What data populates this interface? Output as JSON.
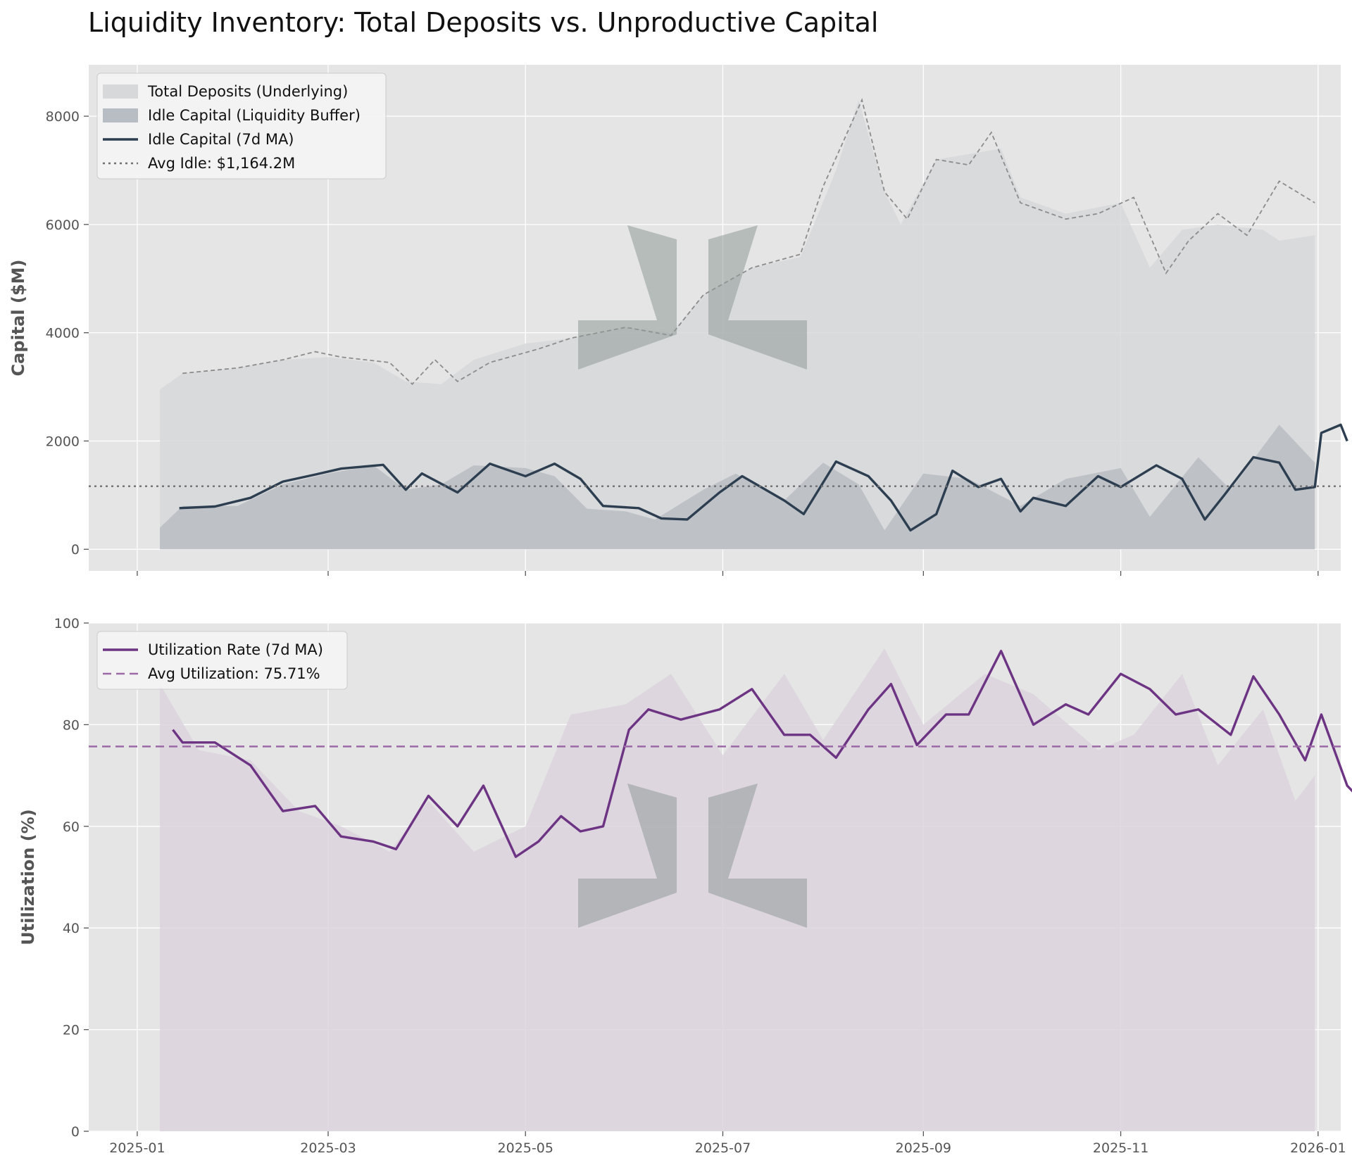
{
  "title": "Liquidity Inventory: Total Deposits vs. Unproductive Capital",
  "colors": {
    "panel_bg": "#e5e5e5",
    "grid": "#ffffff",
    "deposits_fill": "#d7d8da",
    "deposits_line": "#8c8c8c",
    "idle_fill": "#b8bdc3",
    "idle_line": "#2c3e50",
    "avg_idle_line": "#707070",
    "util_fill": "#dcd3de",
    "util_line": "#6c3483",
    "avg_util_line": "#9b6aa6",
    "watermark": "#8f9a98"
  },
  "chart_data": [
    {
      "type": "area",
      "ylabel": "Capital ($M)",
      "ylim": [
        -400,
        8950
      ],
      "yticks": [
        0,
        2000,
        4000,
        6000,
        8000
      ],
      "xlim": [
        "2024-12-17",
        "2026-01-08"
      ],
      "xticks": [
        "2025-01",
        "2025-03",
        "2025-05",
        "2025-07",
        "2025-09",
        "2025-11",
        "2026-01"
      ],
      "x_start": "2025-01-08",
      "x_end": "2025-12-31",
      "grid": true,
      "legend_position": "top-left",
      "series": [
        {
          "name": "Total Deposits (Underlying)",
          "kind": "area",
          "points": [
            [
              "2025-01-08",
              2950
            ],
            [
              "2025-01-15",
              3250
            ],
            [
              "2025-02-01",
              3350
            ],
            [
              "2025-02-15",
              3500
            ],
            [
              "2025-03-01",
              3550
            ],
            [
              "2025-03-15",
              3450
            ],
            [
              "2025-03-25",
              3100
            ],
            [
              "2025-04-05",
              3050
            ],
            [
              "2025-04-15",
              3500
            ],
            [
              "2025-05-01",
              3800
            ],
            [
              "2025-05-15",
              3900
            ],
            [
              "2025-06-01",
              4100
            ],
            [
              "2025-06-15",
              4000
            ],
            [
              "2025-06-25",
              4700
            ],
            [
              "2025-07-10",
              5200
            ],
            [
              "2025-07-25",
              5400
            ],
            [
              "2025-08-05",
              7000
            ],
            [
              "2025-08-12",
              8300
            ],
            [
              "2025-08-20",
              6600
            ],
            [
              "2025-08-25",
              6000
            ],
            [
              "2025-09-05",
              7200
            ],
            [
              "2025-09-15",
              7300
            ],
            [
              "2025-09-25",
              7400
            ],
            [
              "2025-10-01",
              6500
            ],
            [
              "2025-10-15",
              6200
            ],
            [
              "2025-11-01",
              6400
            ],
            [
              "2025-11-10",
              5200
            ],
            [
              "2025-11-20",
              5900
            ],
            [
              "2025-12-01",
              6000
            ],
            [
              "2025-12-15",
              5900
            ],
            [
              "2025-12-20",
              5700
            ],
            [
              "2025-12-31",
              5800
            ]
          ]
        },
        {
          "name": "",
          "kind": "dashed-trend",
          "points": [
            [
              "2025-01-15",
              3250
            ],
            [
              "2025-02-01",
              3350
            ],
            [
              "2025-02-15",
              3500
            ],
            [
              "2025-02-25",
              3650
            ],
            [
              "2025-03-05",
              3550
            ],
            [
              "2025-03-20",
              3450
            ],
            [
              "2025-03-27",
              3050
            ],
            [
              "2025-04-03",
              3500
            ],
            [
              "2025-04-10",
              3100
            ],
            [
              "2025-04-20",
              3450
            ],
            [
              "2025-05-05",
              3700
            ],
            [
              "2025-05-15",
              3900
            ],
            [
              "2025-06-01",
              4100
            ],
            [
              "2025-06-15",
              3950
            ],
            [
              "2025-06-25",
              4700
            ],
            [
              "2025-07-10",
              5200
            ],
            [
              "2025-07-25",
              5450
            ],
            [
              "2025-08-01",
              6700
            ],
            [
              "2025-08-10",
              7900
            ],
            [
              "2025-08-13",
              8300
            ],
            [
              "2025-08-20",
              6600
            ],
            [
              "2025-08-27",
              6100
            ],
            [
              "2025-09-05",
              7200
            ],
            [
              "2025-09-15",
              7100
            ],
            [
              "2025-09-22",
              7700
            ],
            [
              "2025-10-01",
              6400
            ],
            [
              "2025-10-15",
              6100
            ],
            [
              "2025-10-25",
              6200
            ],
            [
              "2025-11-05",
              6500
            ],
            [
              "2025-11-15",
              5100
            ],
            [
              "2025-11-22",
              5700
            ],
            [
              "2025-12-01",
              6200
            ],
            [
              "2025-12-10",
              5800
            ],
            [
              "2025-12-20",
              6800
            ],
            [
              "2025-12-31",
              6400
            ]
          ]
        },
        {
          "name": "Idle Capital (Liquidity Buffer)",
          "kind": "area",
          "points": [
            [
              "2025-01-08",
              400
            ],
            [
              "2025-01-15",
              800
            ],
            [
              "2025-02-01",
              800
            ],
            [
              "2025-02-15",
              1200
            ],
            [
              "2025-03-01",
              1400
            ],
            [
              "2025-03-15",
              1550
            ],
            [
              "2025-03-25",
              1100
            ],
            [
              "2025-04-05",
              1200
            ],
            [
              "2025-04-15",
              1550
            ],
            [
              "2025-05-01",
              1500
            ],
            [
              "2025-05-10",
              1350
            ],
            [
              "2025-05-20",
              750
            ],
            [
              "2025-06-01",
              700
            ],
            [
              "2025-06-10",
              550
            ],
            [
              "2025-06-25",
              1100
            ],
            [
              "2025-07-05",
              1400
            ],
            [
              "2025-07-20",
              900
            ],
            [
              "2025-08-01",
              1600
            ],
            [
              "2025-08-12",
              1200
            ],
            [
              "2025-08-20",
              350
            ],
            [
              "2025-09-01",
              1400
            ],
            [
              "2025-09-15",
              1300
            ],
            [
              "2025-10-01",
              800
            ],
            [
              "2025-10-15",
              1300
            ],
            [
              "2025-11-01",
              1500
            ],
            [
              "2025-11-10",
              600
            ],
            [
              "2025-11-25",
              1700
            ],
            [
              "2025-12-05",
              1100
            ],
            [
              "2025-12-20",
              2300
            ],
            [
              "2025-12-31",
              1600
            ]
          ]
        },
        {
          "name": "Idle Capital (7d MA)",
          "kind": "line",
          "points": [
            [
              "2025-01-14",
              760
            ],
            [
              "2025-01-25",
              790
            ],
            [
              "2025-02-05",
              950
            ],
            [
              "2025-02-15",
              1250
            ],
            [
              "2025-02-25",
              1380
            ],
            [
              "2025-03-05",
              1490
            ],
            [
              "2025-03-18",
              1560
            ],
            [
              "2025-03-25",
              1100
            ],
            [
              "2025-03-30",
              1400
            ],
            [
              "2025-04-10",
              1050
            ],
            [
              "2025-04-20",
              1580
            ],
            [
              "2025-05-01",
              1350
            ],
            [
              "2025-05-10",
              1580
            ],
            [
              "2025-05-18",
              1300
            ],
            [
              "2025-05-25",
              800
            ],
            [
              "2025-06-05",
              760
            ],
            [
              "2025-06-12",
              570
            ],
            [
              "2025-06-20",
              550
            ],
            [
              "2025-06-30",
              1050
            ],
            [
              "2025-07-07",
              1350
            ],
            [
              "2025-07-20",
              900
            ],
            [
              "2025-07-26",
              650
            ],
            [
              "2025-08-05",
              1620
            ],
            [
              "2025-08-15",
              1350
            ],
            [
              "2025-08-22",
              900
            ],
            [
              "2025-08-28",
              350
            ],
            [
              "2025-09-05",
              650
            ],
            [
              "2025-09-10",
              1450
            ],
            [
              "2025-09-18",
              1150
            ],
            [
              "2025-09-25",
              1300
            ],
            [
              "2025-10-01",
              700
            ],
            [
              "2025-10-05",
              950
            ],
            [
              "2025-10-15",
              800
            ],
            [
              "2025-10-25",
              1350
            ],
            [
              "2025-11-01",
              1150
            ],
            [
              "2025-11-12",
              1550
            ],
            [
              "2025-11-20",
              1300
            ],
            [
              "2025-11-27",
              550
            ],
            [
              "2025-12-03",
              1000
            ],
            [
              "2025-12-12",
              1700
            ],
            [
              "2025-12-20",
              1600
            ],
            [
              "2025-12-25",
              1100
            ],
            [
              "2025-12-31",
              1150
            ],
            [
              "2026-01-02",
              2150
            ],
            [
              "2026-01-08",
              2300
            ],
            [
              "2026-01-10",
              2000
            ]
          ]
        },
        {
          "name": "Avg Idle: $1,164.2M",
          "kind": "hline",
          "value": 1164.2
        }
      ]
    },
    {
      "type": "area",
      "ylabel": "Utilization (%)",
      "ylim": [
        0,
        100
      ],
      "yticks": [
        0,
        20,
        40,
        60,
        80,
        100
      ],
      "xlim": [
        "2024-12-17",
        "2026-01-08"
      ],
      "xticks": [
        "2025-01",
        "2025-03",
        "2025-05",
        "2025-07",
        "2025-09",
        "2025-11",
        "2026-01"
      ],
      "grid": true,
      "legend_position": "top-left",
      "series": [
        {
          "name": "",
          "kind": "area",
          "points": [
            [
              "2025-01-08",
              88
            ],
            [
              "2025-01-20",
              75
            ],
            [
              "2025-02-05",
              73
            ],
            [
              "2025-02-20",
              63
            ],
            [
              "2025-03-05",
              60
            ],
            [
              "2025-03-20",
              55
            ],
            [
              "2025-04-01",
              65
            ],
            [
              "2025-04-15",
              55
            ],
            [
              "2025-05-01",
              60
            ],
            [
              "2025-05-15",
              82
            ],
            [
              "2025-06-01",
              84
            ],
            [
              "2025-06-15",
              90
            ],
            [
              "2025-07-01",
              74
            ],
            [
              "2025-07-20",
              90
            ],
            [
              "2025-08-01",
              77
            ],
            [
              "2025-08-20",
              95
            ],
            [
              "2025-09-01",
              80
            ],
            [
              "2025-09-20",
              90
            ],
            [
              "2025-10-05",
              86
            ],
            [
              "2025-10-25",
              75
            ],
            [
              "2025-11-05",
              78
            ],
            [
              "2025-11-20",
              90
            ],
            [
              "2025-12-01",
              72
            ],
            [
              "2025-12-15",
              83
            ],
            [
              "2025-12-25",
              65
            ],
            [
              "2025-12-31",
              70
            ]
          ]
        },
        {
          "name": "Utilization Rate (7d MA)",
          "kind": "line",
          "points": [
            [
              "2025-01-12",
              79
            ],
            [
              "2025-01-15",
              76.5
            ],
            [
              "2025-01-25",
              76.5
            ],
            [
              "2025-02-05",
              72
            ],
            [
              "2025-02-15",
              63
            ],
            [
              "2025-02-25",
              64
            ],
            [
              "2025-03-05",
              58
            ],
            [
              "2025-03-15",
              57
            ],
            [
              "2025-03-22",
              55.5
            ],
            [
              "2025-04-01",
              66
            ],
            [
              "2025-04-10",
              60
            ],
            [
              "2025-04-18",
              68
            ],
            [
              "2025-04-28",
              54
            ],
            [
              "2025-05-05",
              57
            ],
            [
              "2025-05-12",
              62
            ],
            [
              "2025-05-18",
              59
            ],
            [
              "2025-05-25",
              60
            ],
            [
              "2025-06-02",
              79
            ],
            [
              "2025-06-08",
              83
            ],
            [
              "2025-06-18",
              81
            ],
            [
              "2025-06-30",
              83
            ],
            [
              "2025-07-10",
              87
            ],
            [
              "2025-07-20",
              78
            ],
            [
              "2025-07-28",
              78
            ],
            [
              "2025-08-05",
              73.5
            ],
            [
              "2025-08-15",
              83
            ],
            [
              "2025-08-22",
              88
            ],
            [
              "2025-08-30",
              76
            ],
            [
              "2025-09-08",
              82
            ],
            [
              "2025-09-15",
              82
            ],
            [
              "2025-09-25",
              94.5
            ],
            [
              "2025-10-05",
              80
            ],
            [
              "2025-10-15",
              84
            ],
            [
              "2025-10-22",
              82
            ],
            [
              "2025-11-01",
              90
            ],
            [
              "2025-11-10",
              87
            ],
            [
              "2025-11-18",
              82
            ],
            [
              "2025-11-25",
              83
            ],
            [
              "2025-12-05",
              78
            ],
            [
              "2025-12-12",
              89.5
            ],
            [
              "2025-12-20",
              82
            ],
            [
              "2025-12-28",
              73
            ],
            [
              "2026-01-02",
              82
            ],
            [
              "2026-01-10",
              68
            ],
            [
              "2026-01-13",
              66
            ],
            [
              "2026-01-18",
              69.5
            ]
          ]
        },
        {
          "name": "Avg Utilization: 75.71%",
          "kind": "hline",
          "value": 75.71
        }
      ]
    }
  ]
}
